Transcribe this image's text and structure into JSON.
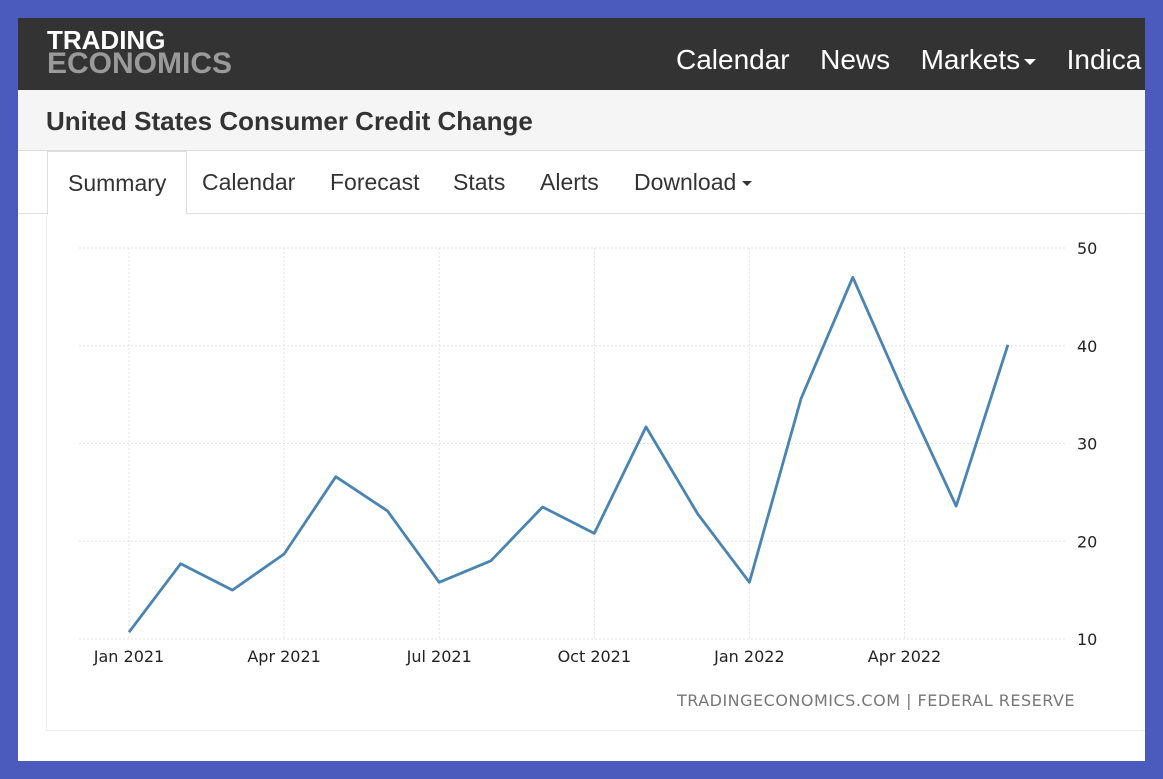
{
  "header": {
    "logo_line1": "TRADING",
    "logo_line2": "ECONOMICS",
    "nav": [
      "Calendar",
      "News",
      "Markets",
      "Indica"
    ]
  },
  "page_title": "United States Consumer Credit Change",
  "tabs": [
    "Summary",
    "Calendar",
    "Forecast",
    "Stats",
    "Alerts",
    "Download"
  ],
  "source": "TRADINGECONOMICS.COM | FEDERAL RESERVE",
  "colors": {
    "line": "#4a84b2",
    "topbar": "#333333",
    "frame": "#4a5bbd"
  },
  "chart_data": {
    "type": "line",
    "title": "",
    "xlabel": "",
    "ylabel": "",
    "ylim": [
      10,
      50
    ],
    "y_ticks": [
      10,
      20,
      30,
      40,
      50
    ],
    "y_axis_position": "right",
    "grid": true,
    "x_ticks": [
      "Jan 2021",
      "Apr 2021",
      "Jul 2021",
      "Oct 2021",
      "Jan 2022",
      "Apr 2022"
    ],
    "x": [
      "2021-01",
      "2021-02",
      "2021-03",
      "2021-04",
      "2021-05",
      "2021-06",
      "2021-07",
      "2021-08",
      "2021-09",
      "2021-10",
      "2021-11",
      "2021-12",
      "2022-01",
      "2022-02",
      "2022-03",
      "2022-04",
      "2022-05",
      "2022-06"
    ],
    "series": [
      {
        "values": [
          10.7,
          17.7,
          15.0,
          18.7,
          26.6,
          23.1,
          15.8,
          18.0,
          23.5,
          20.8,
          31.7,
          22.8,
          15.8,
          34.6,
          47.0,
          35.0,
          23.6,
          40.1
        ]
      }
    ]
  }
}
